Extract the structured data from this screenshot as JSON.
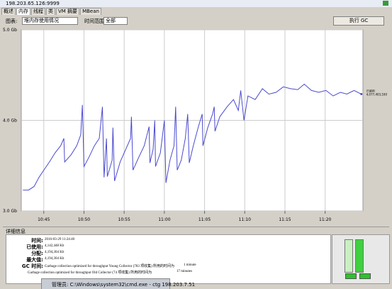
{
  "window": {
    "title": "198.203.65.126:9999"
  },
  "tabs": [
    "概述",
    "内存",
    "线程",
    "类",
    "VM 摘要",
    "MBean"
  ],
  "controls": {
    "chart_label": "图表:",
    "chart_value": "堆内存使用情况",
    "range_label": "时间范围:",
    "range_value": "全部",
    "gc_button": "执行 GC"
  },
  "chart_data": {
    "type": "line",
    "color": "#4a4ad0",
    "grid": true,
    "x": [
      42.4,
      43.1,
      43.8,
      44.4,
      45.0,
      45.7,
      46.4,
      47.1,
      47.5,
      47.6,
      48.4,
      49.1,
      49.6,
      49.8,
      50.0,
      50.6,
      51.3,
      51.9,
      52.3,
      52.5,
      52.8,
      52.9,
      53.5,
      53.6,
      53.8,
      54.5,
      55.2,
      55.8,
      55.9,
      56.1,
      56.8,
      57.5,
      58.1,
      58.2,
      58.6,
      58.8,
      58.9,
      59.5,
      60.0,
      60.2,
      60.7,
      61.2,
      61.4,
      61.6,
      62.1,
      62.6,
      62.9,
      63.1,
      63.6,
      64.2,
      64.7,
      64.8,
      65.4,
      66.0,
      66.2,
      66.3,
      66.9,
      67.8,
      68.6,
      69.2,
      69.5,
      69.9,
      70.4,
      71.3,
      72.2,
      73.0,
      73.9,
      74.8,
      75.7,
      76.6,
      77.4,
      78.3,
      79.2,
      80.1,
      81.0,
      81.9,
      82.7,
      83.6,
      84.5
    ],
    "values": [
      3.23,
      3.23,
      3.27,
      3.37,
      3.45,
      3.54,
      3.64,
      3.72,
      3.8,
      3.54,
      3.62,
      3.72,
      3.84,
      4.17,
      3.49,
      3.59,
      3.72,
      3.8,
      4.15,
      3.37,
      3.8,
      3.38,
      3.56,
      3.92,
      3.33,
      3.54,
      3.68,
      3.8,
      4.04,
      3.45,
      3.59,
      3.72,
      3.93,
      3.53,
      3.68,
      4.0,
      3.49,
      3.64,
      4.0,
      3.31,
      3.56,
      3.72,
      4.15,
      3.45,
      3.56,
      3.8,
      4.07,
      3.53,
      3.72,
      3.92,
      4.07,
      3.72,
      3.92,
      4.07,
      4.15,
      3.88,
      4.04,
      4.15,
      4.23,
      4.11,
      4.33,
      4.0,
      4.27,
      4.23,
      4.35,
      4.29,
      4.31,
      4.37,
      4.35,
      4.34,
      4.4,
      4.33,
      4.31,
      4.33,
      4.27,
      4.31,
      4.29,
      4.33,
      4.29
    ],
    "xlim": [
      42.2,
      84.7
    ],
    "xticks": [
      {
        "value": 45,
        "label": "10:45"
      },
      {
        "value": 50,
        "label": "10:50"
      },
      {
        "value": 55,
        "label": "10:55"
      },
      {
        "value": 60,
        "label": "11:00"
      },
      {
        "value": 65,
        "label": "11:05"
      },
      {
        "value": 70,
        "label": "11:10"
      },
      {
        "value": 75,
        "label": "11:15"
      },
      {
        "value": 80,
        "label": "11:20"
      }
    ],
    "ylim": [
      3,
      5
    ],
    "yticks": [
      {
        "value": 3,
        "label": "3.0 Gb"
      },
      {
        "value": 4,
        "label": "4.0 Gb"
      },
      {
        "value": 5,
        "label": "5.0 Gb"
      }
    ],
    "annotation": {
      "label": "已使用",
      "value_text": "4,077,403,160"
    }
  },
  "details": {
    "header": "详细信息",
    "rows": [
      [
        "时间:",
        "2016-03-29 11:24:40"
      ],
      [
        "已使用:",
        "4,142,448 Kb"
      ],
      [
        "分配:",
        "4,194,304 Kb"
      ],
      [
        "最大值:",
        "4,194,304 Kb"
      ]
    ],
    "gc_label": "GC 时间:",
    "gc": [
      [
        "Garbage collection optimized for throughput Young Collector (783 项收集) 所用的时间为",
        "1 minute"
      ],
      [
        "Garbage collection optimized for throughput Old Collector (74 项收集) 所用的时间为",
        "17 minutes"
      ]
    ]
  },
  "taskbar": {
    "text": "管理员: C:\\Windows\\system32\\cmd.exe - ctg  198.203.7.51"
  }
}
